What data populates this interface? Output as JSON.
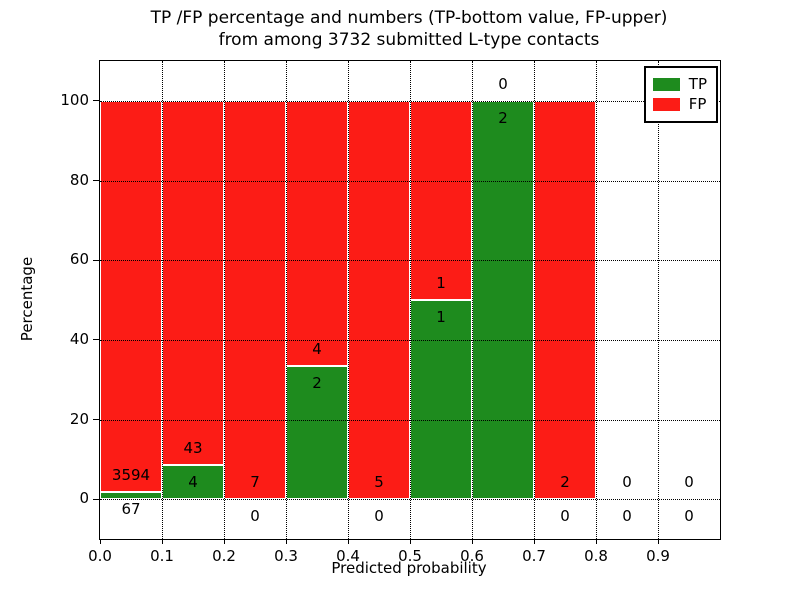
{
  "figure": {
    "title_line1": "TP /FP percentage and numbers (TP-bottom value, FP-upper)",
    "title_line2": "from among 3732 submitted L-type contacts"
  },
  "chart_data": {
    "type": "bar",
    "stacked": true,
    "title": "TP /FP percentage and numbers (TP-bottom value, FP-upper) from among 3732 submitted L-type contacts",
    "title_lines": [
      "TP /FP percentage and numbers (TP-bottom value, FP-upper)",
      "from among 3732 submitted L-type contacts"
    ],
    "xlabel": "Predicted probability",
    "ylabel": "Percentage",
    "xlim": [
      0.0,
      1.0
    ],
    "ylim": [
      -10,
      110
    ],
    "x_ticks": [
      "0.0",
      "0.1",
      "0.2",
      "0.3",
      "0.4",
      "0.5",
      "0.6",
      "0.7",
      "0.8",
      "0.9"
    ],
    "y_ticks": [
      0,
      20,
      40,
      60,
      80,
      100
    ],
    "grid": "dotted black, both axes, drawn over bars",
    "bin_width": 0.1,
    "annotation_note": "FP count printed above TP/FP boundary, TP count printed below it",
    "bins": [
      {
        "x_range": [
          0.0,
          0.1
        ],
        "tp": 67,
        "fp": 3594,
        "tp_pct": 1.83,
        "fp_pct": 98.17
      },
      {
        "x_range": [
          0.1,
          0.2
        ],
        "tp": 4,
        "fp": 43,
        "tp_pct": 8.51,
        "fp_pct": 91.49
      },
      {
        "x_range": [
          0.2,
          0.3
        ],
        "tp": 0,
        "fp": 7,
        "tp_pct": 0,
        "fp_pct": 100
      },
      {
        "x_range": [
          0.3,
          0.4
        ],
        "tp": 2,
        "fp": 4,
        "tp_pct": 33.33,
        "fp_pct": 66.67
      },
      {
        "x_range": [
          0.4,
          0.5
        ],
        "tp": 0,
        "fp": 5,
        "tp_pct": 0,
        "fp_pct": 100
      },
      {
        "x_range": [
          0.5,
          0.6
        ],
        "tp": 1,
        "fp": 1,
        "tp_pct": 50,
        "fp_pct": 50
      },
      {
        "x_range": [
          0.6,
          0.7
        ],
        "tp": 2,
        "fp": 0,
        "tp_pct": 100,
        "fp_pct": 0
      },
      {
        "x_range": [
          0.7,
          0.8
        ],
        "tp": 0,
        "fp": 2,
        "tp_pct": 0,
        "fp_pct": 100
      },
      {
        "x_range": [
          0.8,
          0.9
        ],
        "tp": 0,
        "fp": 0,
        "tp_pct": null,
        "fp_pct": null
      },
      {
        "x_range": [
          0.9,
          1.0
        ],
        "tp": 0,
        "fp": 0,
        "tp_pct": null,
        "fp_pct": null
      }
    ],
    "series": [
      {
        "name": "TP",
        "color": "#1e8b1e"
      },
      {
        "name": "FP",
        "color": "#fc1c16"
      }
    ],
    "legend": {
      "position": "upper right",
      "entries": [
        {
          "label": "TP",
          "color": "#1e8b1e"
        },
        {
          "label": "FP",
          "color": "#fc1c16"
        }
      ]
    },
    "colors": {
      "tp_green": "#1e8b1e",
      "fp_red": "#fc1c16",
      "bar_edge": "#ffffff",
      "axis": "#000000",
      "background": "#ffffff"
    }
  }
}
